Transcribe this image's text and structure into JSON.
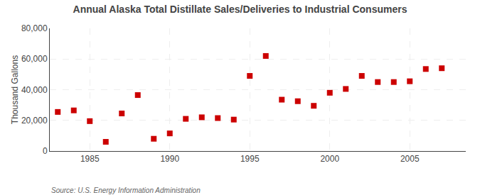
{
  "chart_data": {
    "type": "scatter",
    "title": "Annual Alaska Total Distillate Sales/Deliveries to Industrial Consumers",
    "ylabel": "Thousand Gallons",
    "annotations": [
      "Source: U.S. Energy Information Administration"
    ],
    "x": [
      1983,
      1984,
      1985,
      1986,
      1987,
      1988,
      1989,
      1990,
      1991,
      1992,
      1993,
      1994,
      1995,
      1996,
      1997,
      1998,
      1999,
      2000,
      2001,
      2002,
      2003,
      2004,
      2005,
      2006,
      2007
    ],
    "values": [
      25500,
      26500,
      19500,
      6000,
      24500,
      36500,
      8000,
      11500,
      21000,
      22000,
      21500,
      20500,
      49000,
      62000,
      33500,
      32500,
      29500,
      38000,
      40500,
      49000,
      45000,
      45000,
      45500,
      53500,
      54000
    ],
    "color": "#cc0000",
    "marker": "square",
    "xlim": [
      1982.5,
      2008.5
    ],
    "xticks": [
      1985,
      1990,
      1995,
      2000,
      2005
    ],
    "ylim": [
      0,
      80000
    ],
    "yticks": [
      0,
      {
        "value": 20000,
        "label": "20,000"
      },
      {
        "value": 40000,
        "label": "40,000"
      },
      {
        "value": 60000,
        "label": "60,000"
      },
      {
        "value": 80000,
        "label": "80,000"
      }
    ],
    "grid": true
  }
}
